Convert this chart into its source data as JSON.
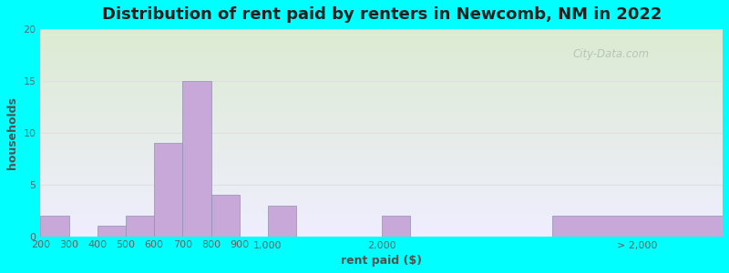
{
  "title": "Distribution of rent paid by renters in Newcomb, NM in 2022",
  "xlabel": "rent paid ($)",
  "ylabel": "households",
  "background_color": "#00FFFF",
  "bar_color": "#c8a8d8",
  "bar_edge_color": "#9090b0",
  "ylim": [
    0,
    20
  ],
  "yticks": [
    0,
    5,
    10,
    15,
    20
  ],
  "grid_color": "#e0e0e0",
  "categories": [
    "200",
    "300",
    "400",
    "500",
    "600",
    "700",
    "800",
    "900",
    "1,000",
    "2,000",
    "> 2,000"
  ],
  "x_positions": [
    0,
    1,
    2,
    3,
    4,
    5,
    6,
    7,
    8,
    12,
    18
  ],
  "bar_widths": [
    1,
    1,
    1,
    1,
    1,
    1,
    1,
    1,
    1,
    1,
    6
  ],
  "values": [
    2,
    0,
    1,
    2,
    9,
    15,
    4,
    0,
    3,
    2,
    2
  ],
  "title_fontsize": 13,
  "axis_label_fontsize": 9,
  "tick_fontsize": 8,
  "watermark": "City-Data.com"
}
